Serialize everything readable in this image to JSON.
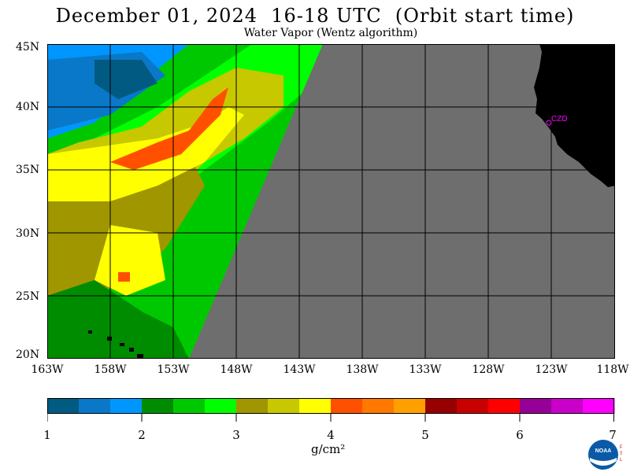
{
  "header": {
    "title": "December 01, 2024  16-18 UTC  (Orbit start time)",
    "subtitle": "Water Vapor (Wentz algorithm)"
  },
  "map": {
    "lat_labels": [
      "45N",
      "40N",
      "35N",
      "30N",
      "25N",
      "20N"
    ],
    "lon_labels": [
      "163W",
      "158W",
      "153W",
      "148W",
      "143W",
      "138W",
      "133W",
      "128W",
      "123W",
      "118W"
    ],
    "station_label": "CZD",
    "no_data_color": "#6e6e6e",
    "land_color": "#000000"
  },
  "colorbar": {
    "tick_labels": [
      "1",
      "2",
      "3",
      "4",
      "5",
      "6",
      "7"
    ],
    "units": "g/cm²",
    "colors": [
      "#005a82",
      "#0a78c8",
      "#0096ff",
      "#008c00",
      "#00c800",
      "#00ff00",
      "#a09600",
      "#c8c800",
      "#ffff00",
      "#ff5000",
      "#ff7800",
      "#ffa000",
      "#960000",
      "#c80000",
      "#ff0000",
      "#960096",
      "#c800c8",
      "#ff00ff"
    ]
  },
  "logo": {
    "agency": "NOAA",
    "side_text": "PSL"
  }
}
